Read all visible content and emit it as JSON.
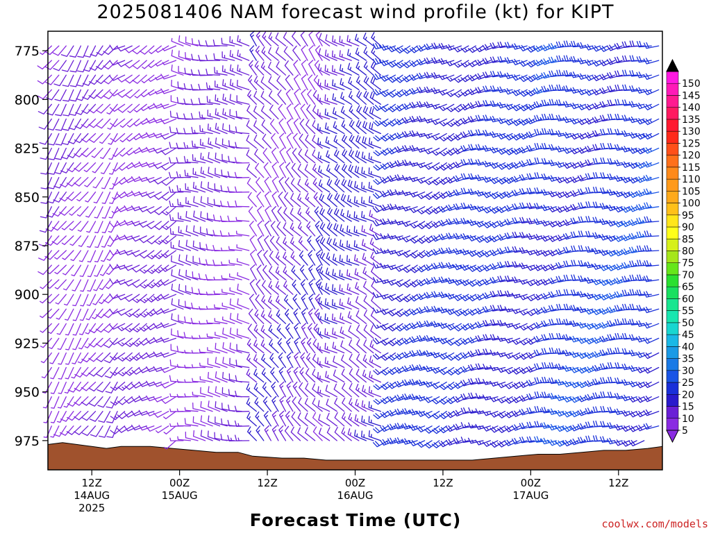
{
  "title": "2025081406 NAM forecast wind profile (kt) for KIPT",
  "xlabel": "Forecast Time (UTC)",
  "credit": "coolwx.com/models",
  "chart_data": {
    "type": "wind-barb-profile",
    "title": "2025081406 NAM forecast wind profile (kt) for KIPT",
    "xlabel": "Forecast Time (UTC)",
    "ylabel": "",
    "y_axis": {
      "reversed": true,
      "range": [
        765,
        990
      ],
      "ticks": [
        775,
        800,
        825,
        850,
        875,
        900,
        925,
        950,
        975
      ]
    },
    "x_axis": {
      "range_hours": [
        0,
        84
      ],
      "ticks": [
        {
          "hour": 6,
          "line1": "12Z",
          "line2": "14AUG",
          "line3": "2025"
        },
        {
          "hour": 18,
          "line1": "00Z",
          "line2": "15AUG",
          "line3": ""
        },
        {
          "hour": 30,
          "line1": "12Z",
          "line2": "",
          "line3": ""
        },
        {
          "hour": 42,
          "line1": "00Z",
          "line2": "16AUG",
          "line3": ""
        },
        {
          "hour": 54,
          "line1": "12Z",
          "line2": "",
          "line3": ""
        },
        {
          "hour": 66,
          "line1": "00Z",
          "line2": "17AUG",
          "line3": ""
        },
        {
          "hour": 78,
          "line1": "12Z",
          "line2": "",
          "line3": ""
        }
      ]
    },
    "surface_pressure": [
      {
        "hour": 0,
        "p": 977
      },
      {
        "hour": 2,
        "p": 976
      },
      {
        "hour": 4,
        "p": 977
      },
      {
        "hour": 6,
        "p": 978
      },
      {
        "hour": 8,
        "p": 979
      },
      {
        "hour": 10,
        "p": 978
      },
      {
        "hour": 14,
        "p": 978
      },
      {
        "hour": 17,
        "p": 979
      },
      {
        "hour": 20,
        "p": 980
      },
      {
        "hour": 23,
        "p": 981
      },
      {
        "hour": 26,
        "p": 981
      },
      {
        "hour": 28,
        "p": 983
      },
      {
        "hour": 32,
        "p": 984
      },
      {
        "hour": 35,
        "p": 984
      },
      {
        "hour": 38,
        "p": 985
      },
      {
        "hour": 42,
        "p": 985
      },
      {
        "hour": 46,
        "p": 985
      },
      {
        "hour": 50,
        "p": 985
      },
      {
        "hour": 54,
        "p": 985
      },
      {
        "hour": 58,
        "p": 985
      },
      {
        "hour": 61,
        "p": 984
      },
      {
        "hour": 64,
        "p": 983
      },
      {
        "hour": 67,
        "p": 982
      },
      {
        "hour": 70,
        "p": 982
      },
      {
        "hour": 73,
        "p": 981
      },
      {
        "hour": 76,
        "p": 980
      },
      {
        "hour": 79,
        "p": 980
      },
      {
        "hour": 82,
        "p": 979
      },
      {
        "hour": 84,
        "p": 978
      }
    ],
    "ground_color": "#a0522d",
    "wind_regimes": [
      {
        "hours": [
          0,
          10
        ],
        "dir_deg": 215,
        "speed_kt": 8
      },
      {
        "hours": [
          10,
          18
        ],
        "dir_deg": 240,
        "speed_kt": 10
      },
      {
        "hours": [
          18,
          28
        ],
        "dir_deg": 280,
        "speed_kt": 10
      },
      {
        "hours": [
          28,
          38
        ],
        "dir_deg": 320,
        "speed_kt": 12
      },
      {
        "hours": [
          38,
          46
        ],
        "dir_deg": 300,
        "speed_kt": 15
      },
      {
        "hours": [
          46,
          58
        ],
        "dir_deg": 245,
        "speed_kt": 20
      },
      {
        "hours": [
          58,
          68
        ],
        "dir_deg": 250,
        "speed_kt": 20
      },
      {
        "hours": [
          68,
          84
        ],
        "dir_deg": 255,
        "speed_kt": 22
      }
    ],
    "colorbar": {
      "labels": [
        5,
        10,
        15,
        20,
        25,
        30,
        35,
        40,
        45,
        50,
        55,
        60,
        65,
        70,
        75,
        80,
        85,
        90,
        95,
        100,
        105,
        110,
        115,
        120,
        125,
        130,
        135,
        140,
        145,
        150
      ],
      "colors": [
        "#8a2be2",
        "#6a1fd6",
        "#2a1acc",
        "#1a30d9",
        "#1a55e6",
        "#1a7ae6",
        "#1a9ae6",
        "#1ab8e6",
        "#19d6d0",
        "#19e6b0",
        "#19e690",
        "#19e060",
        "#2ae030",
        "#66e61a",
        "#a6e61a",
        "#d6f01a",
        "#ffff1a",
        "#ffe61a",
        "#ffc01a",
        "#ffaa1a",
        "#ff9a1a",
        "#ff8a1a",
        "#ff701a",
        "#ff501a",
        "#ff2a1a",
        "#ff1a30",
        "#ff1a60",
        "#ff1a90",
        "#ff1ab8",
        "#ff1ae0"
      ]
    }
  }
}
